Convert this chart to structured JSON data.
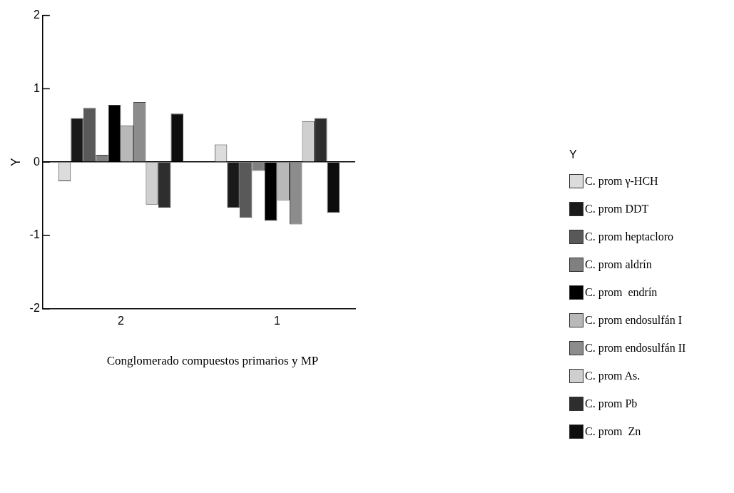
{
  "chart_data": {
    "type": "bar",
    "xlabel": "Conglomerado compuestos primarios y MP",
    "ylabel": "Y",
    "legend_title": "Y",
    "legend": "right",
    "categories": [
      "2",
      "1"
    ],
    "ylim": [
      -2,
      2
    ],
    "yticks": [
      -2,
      -1,
      0,
      1,
      2
    ],
    "series": [
      {
        "name": "C. prom γ-HCH",
        "color": "#dcdcdc",
        "values": [
          -0.26,
          0.24
        ]
      },
      {
        "name": "C. prom DDT",
        "color": "#1a1a1a",
        "values": [
          0.6,
          -0.62
        ]
      },
      {
        "name": "C. prom heptacloro",
        "color": "#595959",
        "values": [
          0.74,
          -0.76
        ]
      },
      {
        "name": "C. prom aldrín",
        "color": "#808080",
        "values": [
          0.1,
          -0.12
        ]
      },
      {
        "name": "C. prom  endrín",
        "color": "#000000",
        "values": [
          0.78,
          -0.8
        ]
      },
      {
        "name": "C. prom endosulfán I",
        "color": "#b8b8b8",
        "values": [
          0.5,
          -0.52
        ]
      },
      {
        "name": "C. prom endosulfán II",
        "color": "#8c8c8c",
        "values": [
          0.82,
          -0.85
        ]
      },
      {
        "name": "C. prom As.",
        "color": "#cfcfcf",
        "values": [
          -0.58,
          0.56
        ]
      },
      {
        "name": "C. prom Pb",
        "color": "#2e2e2e",
        "values": [
          -0.62,
          0.6
        ]
      },
      {
        "name": "C. prom  Zn",
        "color": "#0d0d0d",
        "values": [
          0.66,
          -0.69
        ]
      }
    ]
  }
}
